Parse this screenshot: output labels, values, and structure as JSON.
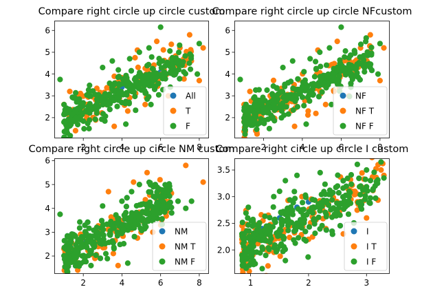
{
  "chart_data": [
    {
      "type": "scatter",
      "title": "Compare right circle up circle custom",
      "xlim": [
        0.5,
        8.5
      ],
      "ylim": [
        1.05,
        6.45
      ],
      "xticks": [
        2,
        4,
        6,
        8
      ],
      "yticks": [
        2,
        3,
        4,
        5,
        6
      ],
      "legend_placement": "lower-right",
      "series": [
        {
          "name": "All",
          "color": "#1f77b4",
          "points": [
            [
              1.2,
              2.2
            ],
            [
              2.0,
              2.6
            ],
            [
              3.0,
              3.1
            ],
            [
              4.0,
              3.4
            ],
            [
              5.0,
              3.8
            ],
            [
              6.0,
              4.1
            ]
          ]
        },
        {
          "name": "T",
          "color": "#ff7f0e",
          "points": [
            [
              1.0,
              2.6
            ],
            [
              1.3,
              3.2
            ],
            [
              1.6,
              1.4
            ],
            [
              3.2,
              2.6
            ],
            [
              3.6,
              1.6
            ],
            [
              4.8,
              5.1
            ],
            [
              5.2,
              2.6
            ],
            [
              5.8,
              5.5
            ],
            [
              6.4,
              3.0
            ],
            [
              7.0,
              5.2
            ],
            [
              7.2,
              4.7
            ],
            [
              7.5,
              5.8
            ],
            [
              8.0,
              3.7
            ],
            [
              8.2,
              5.2
            ],
            [
              2.5,
              2.0
            ],
            [
              4.3,
              2.3
            ]
          ]
        },
        {
          "name": "F",
          "color": "#2ca02c",
          "points": [
            [
              0.8,
              3.75
            ],
            [
              1.5,
              2.9
            ],
            [
              3.0,
              4.3
            ],
            [
              3.5,
              4.6
            ],
            [
              4.4,
              4.7
            ],
            [
              4.9,
              5.0
            ],
            [
              5.4,
              5.2
            ],
            [
              6.0,
              6.15
            ],
            [
              6.5,
              3.4
            ],
            [
              7.2,
              4.1
            ],
            [
              7.9,
              4.0
            ],
            [
              8.0,
              5.4
            ],
            [
              4.2,
              1.7
            ],
            [
              2.3,
              1.5
            ],
            [
              5.5,
              2.6
            ]
          ]
        }
      ]
    },
    {
      "type": "scatter",
      "title": "Compare right circle up circle NFcustom",
      "xlim": [
        0.5,
        8.5
      ],
      "ylim": [
        1.05,
        6.45
      ],
      "xticks": [
        2,
        4,
        6,
        8
      ],
      "yticks": [
        2,
        3,
        4,
        5,
        6
      ],
      "legend_placement": "lower-right",
      "series": [
        {
          "name": "NF",
          "color": "#1f77b4",
          "points": [
            [
              1.2,
              2.2
            ],
            [
              2.0,
              2.6
            ],
            [
              3.0,
              3.1
            ],
            [
              4.0,
              3.4
            ],
            [
              5.0,
              3.8
            ],
            [
              6.0,
              4.1
            ]
          ]
        },
        {
          "name": "NF T",
          "color": "#ff7f0e",
          "points": [
            [
              1.0,
              2.6
            ],
            [
              1.3,
              3.2
            ],
            [
              1.6,
              1.4
            ],
            [
              3.2,
              2.6
            ],
            [
              3.6,
              1.6
            ],
            [
              4.8,
              5.1
            ],
            [
              5.2,
              2.6
            ],
            [
              5.8,
              5.5
            ],
            [
              6.4,
              3.0
            ],
            [
              7.0,
              5.2
            ],
            [
              7.2,
              4.7
            ],
            [
              7.5,
              5.8
            ],
            [
              8.0,
              3.7
            ],
            [
              8.2,
              5.2
            ],
            [
              2.5,
              2.0
            ],
            [
              4.3,
              2.3
            ]
          ]
        },
        {
          "name": "NF F",
          "color": "#2ca02c",
          "points": [
            [
              0.8,
              3.75
            ],
            [
              1.5,
              2.9
            ],
            [
              3.0,
              4.3
            ],
            [
              3.5,
              4.6
            ],
            [
              4.4,
              4.7
            ],
            [
              4.9,
              5.0
            ],
            [
              5.4,
              5.2
            ],
            [
              6.0,
              6.15
            ],
            [
              6.5,
              3.4
            ],
            [
              7.2,
              4.1
            ],
            [
              7.9,
              4.0
            ],
            [
              8.0,
              5.4
            ],
            [
              4.2,
              1.7
            ],
            [
              2.3,
              1.5
            ],
            [
              5.5,
              2.6
            ]
          ]
        }
      ]
    },
    {
      "type": "scatter",
      "title": "Compare right circle up circle NM custom",
      "xlim": [
        0.5,
        8.5
      ],
      "ylim": [
        1.25,
        6.1
      ],
      "xticks": [
        2,
        4,
        6,
        8
      ],
      "yticks": [
        2,
        3,
        4,
        5,
        6
      ],
      "legend_placement": "lower-right",
      "series": [
        {
          "name": "NM",
          "color": "#1f77b4",
          "points": [
            [
              1.2,
              2.2
            ],
            [
              2.0,
              2.6
            ],
            [
              3.0,
              3.1
            ],
            [
              4.0,
              3.4
            ],
            [
              5.0,
              3.8
            ]
          ]
        },
        {
          "name": "NM T",
          "color": "#ff7f0e",
          "points": [
            [
              1.0,
              2.3
            ],
            [
              1.5,
              1.8
            ],
            [
              3.3,
              4.7
            ],
            [
              3.8,
              1.6
            ],
            [
              4.6,
              5.1
            ],
            [
              5.3,
              5.5
            ],
            [
              5.6,
              3.0
            ],
            [
              6.0,
              3.3
            ],
            [
              7.3,
              5.8
            ],
            [
              8.2,
              5.1
            ],
            [
              2.6,
              1.9
            ]
          ]
        },
        {
          "name": "NM F",
          "color": "#2ca02c",
          "points": [
            [
              0.8,
              3.75
            ],
            [
              1.2,
              2.8
            ],
            [
              3.0,
              4.1
            ],
            [
              4.0,
              4.3
            ],
            [
              4.5,
              4.7
            ],
            [
              4.9,
              5.0
            ],
            [
              5.8,
              4.2
            ],
            [
              6.2,
              4.5
            ],
            [
              6.9,
              4.3
            ],
            [
              7.3,
              4.0
            ],
            [
              7.6,
              4.3
            ],
            [
              4.3,
              1.7
            ],
            [
              2.4,
              1.6
            ]
          ]
        }
      ]
    },
    {
      "type": "scatter",
      "title": "Compare right circle up circle I custom",
      "xlim": [
        0.72,
        3.4
      ],
      "ylim": [
        1.55,
        3.72
      ],
      "xticks": [
        1,
        2,
        3
      ],
      "yticks": [
        2.0,
        2.5,
        3.0,
        3.5
      ],
      "ytick_labels": [
        "2.0",
        "2.5",
        "3.0",
        "3.5"
      ],
      "legend_placement": "lower-right",
      "series": [
        {
          "name": "I",
          "color": "#1f77b4",
          "points": [
            [
              1.0,
              2.2
            ],
            [
              1.2,
              2.4
            ],
            [
              1.5,
              2.6
            ],
            [
              1.8,
              2.8
            ],
            [
              2.0,
              2.9
            ]
          ]
        },
        {
          "name": "I T",
          "color": "#ff7f0e",
          "points": [
            [
              0.85,
              2.2
            ],
            [
              1.0,
              1.8
            ],
            [
              1.3,
              1.7
            ],
            [
              2.0,
              2.2
            ],
            [
              2.3,
              2.4
            ],
            [
              2.6,
              2.3
            ],
            [
              3.0,
              2.6
            ],
            [
              3.25,
              3.5
            ],
            [
              3.3,
              3.4
            ],
            [
              3.2,
              3.6
            ],
            [
              3.28,
              3.62
            ],
            [
              2.8,
              3.1
            ]
          ]
        },
        {
          "name": "I F",
          "color": "#2ca02c",
          "points": [
            [
              0.85,
              2.3
            ],
            [
              0.95,
              2.6
            ],
            [
              1.4,
              3.0
            ],
            [
              1.5,
              3.1
            ],
            [
              1.6,
              3.3
            ],
            [
              1.8,
              3.4
            ],
            [
              2.2,
              3.45
            ],
            [
              2.5,
              3.2
            ],
            [
              2.7,
              3.0
            ],
            [
              2.9,
              3.2
            ],
            [
              3.0,
              3.5
            ],
            [
              3.25,
              3.65
            ],
            [
              3.3,
              3.35
            ],
            [
              1.2,
              1.65
            ],
            [
              1.6,
              1.8
            ]
          ]
        }
      ]
    }
  ]
}
